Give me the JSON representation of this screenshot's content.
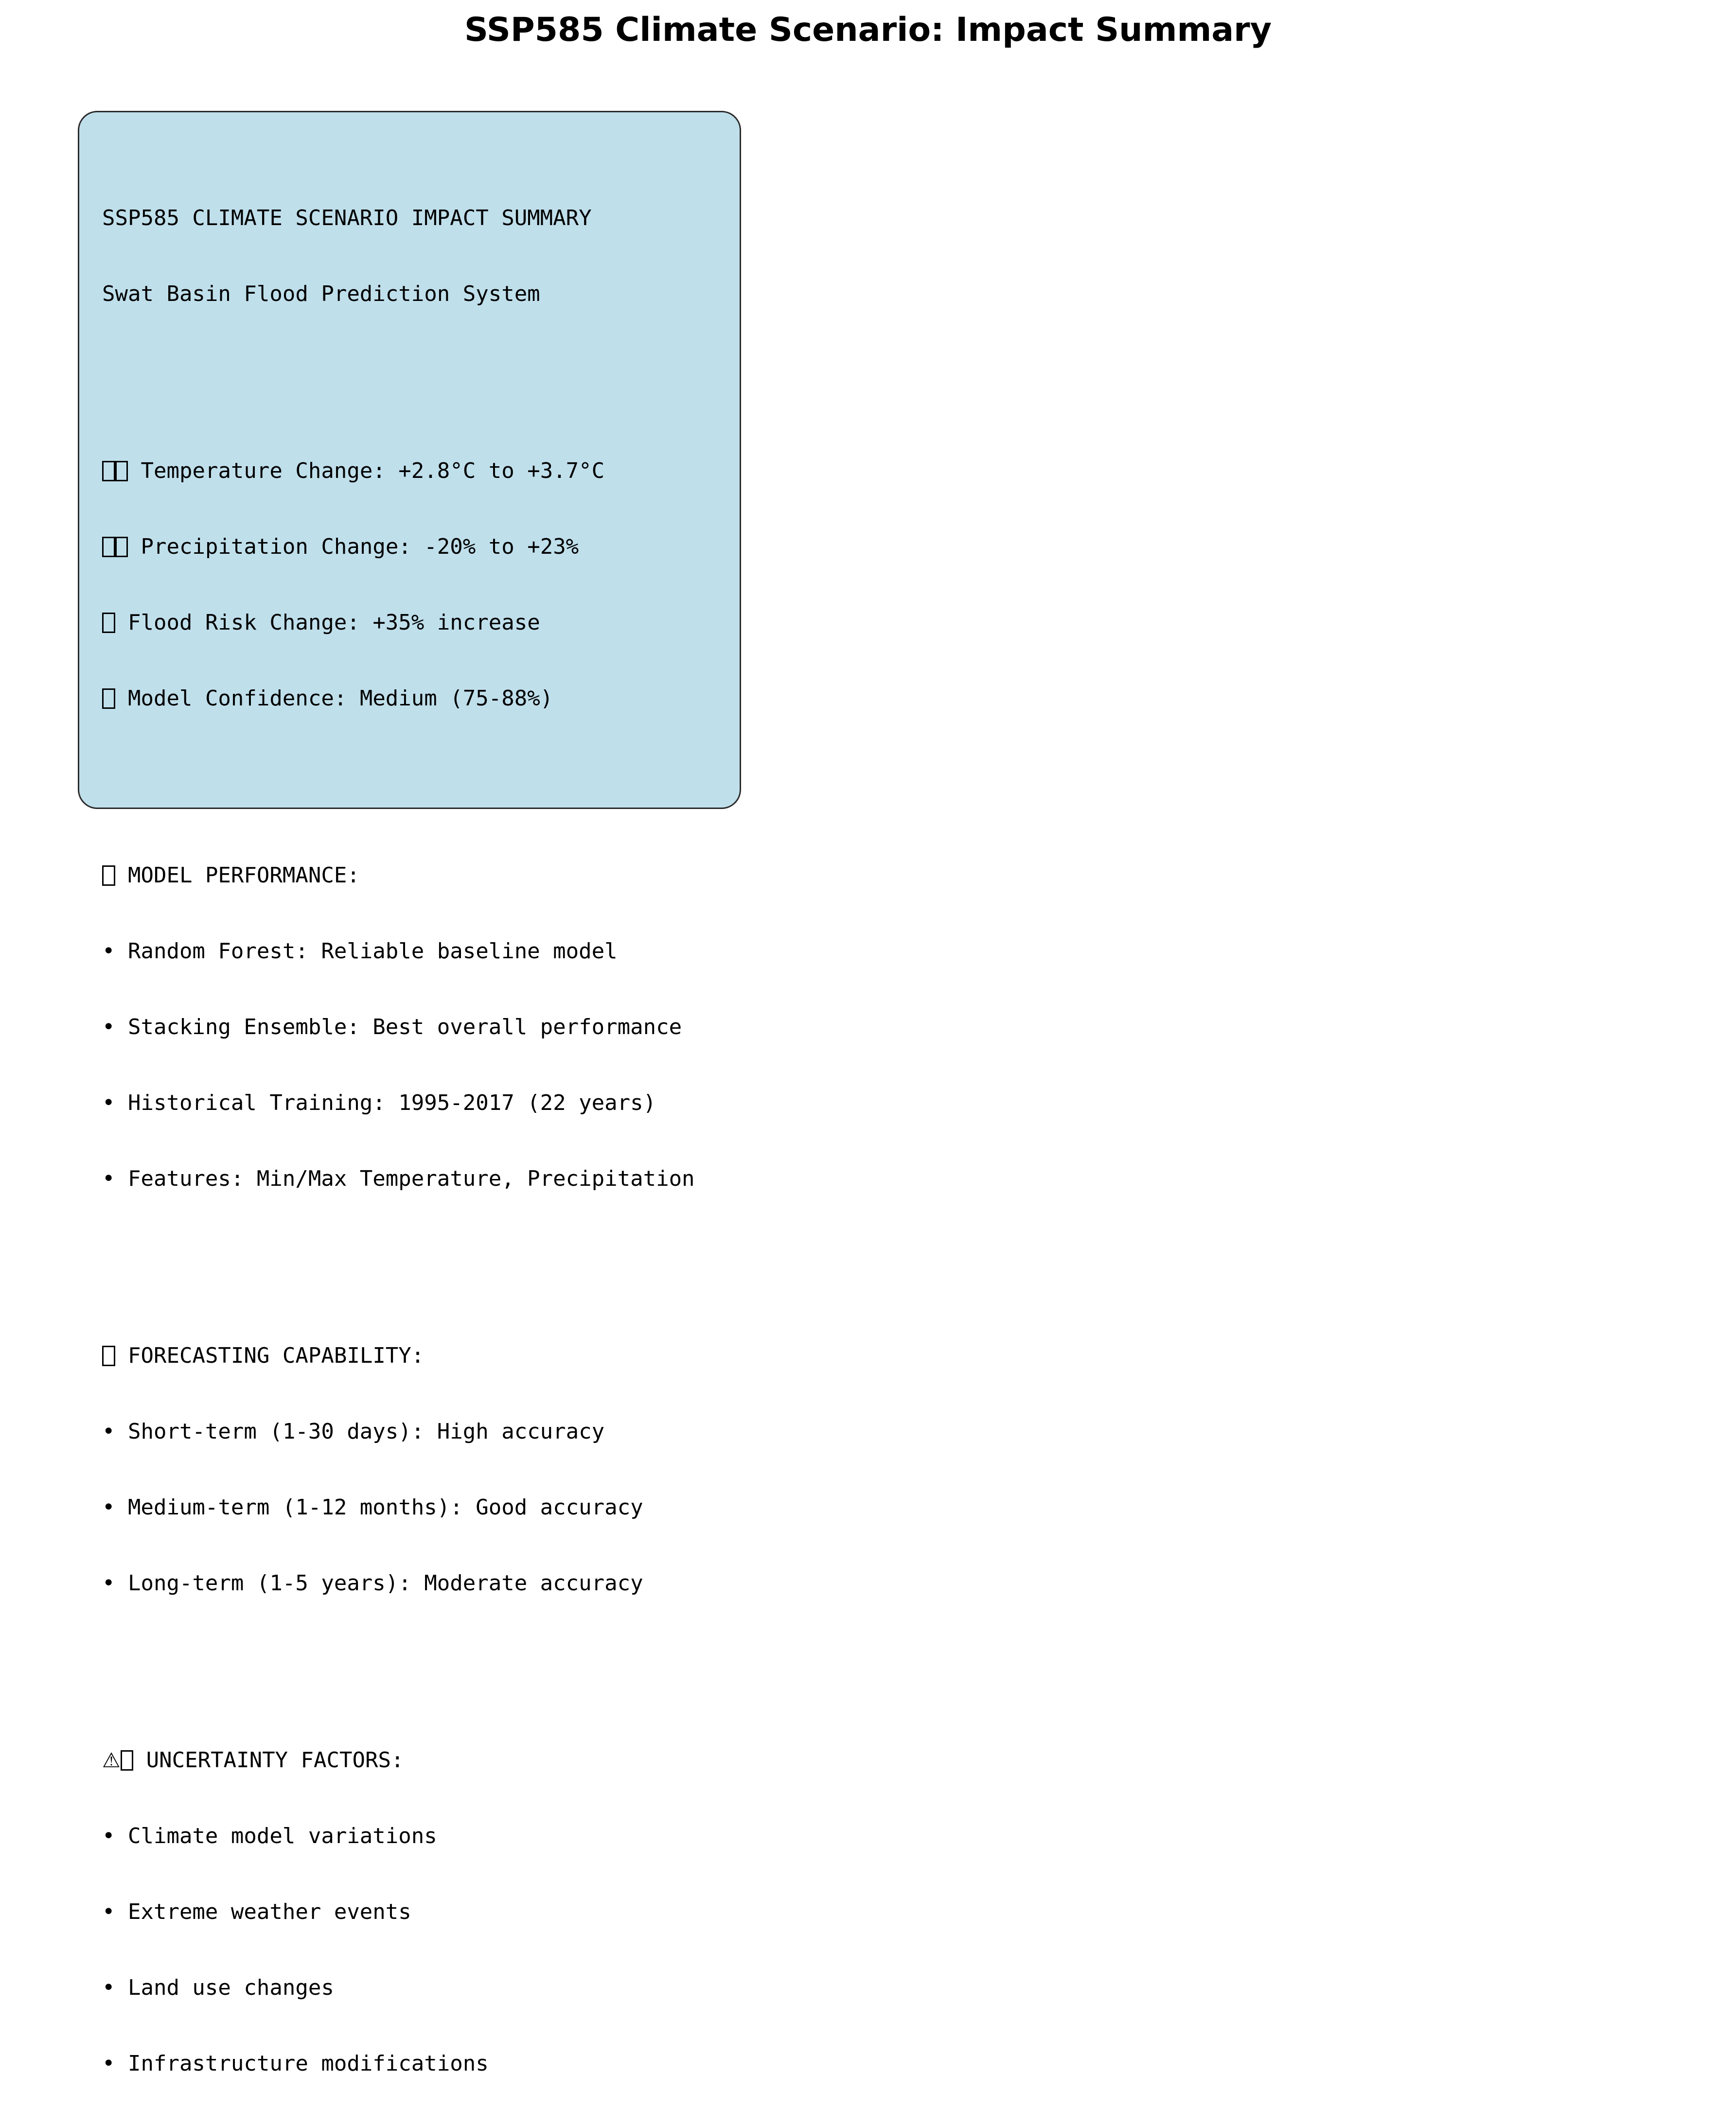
{
  "title": "SSP585 Climate Scenario: Impact Summary",
  "summary": {
    "heading": "SSP585 CLIMATE SCENARIO IMPACT SUMMARY",
    "subheading": "Swat Basin Flood Prediction System",
    "key_changes": [
      {
        "icon": "missing-glyph-icon",
        "glyphs": 2,
        "text": "Temperature Change: +2.8°C to +3.7°C"
      },
      {
        "icon": "missing-glyph-icon",
        "glyphs": 2,
        "text": "Precipitation Change: -20% to +23%"
      },
      {
        "icon": "missing-glyph-icon",
        "glyphs": 1,
        "text": "Flood Risk Change: +35% increase"
      },
      {
        "icon": "missing-glyph-icon",
        "glyphs": 1,
        "text": "Model Confidence: Medium (75-88%)"
      }
    ],
    "sections": [
      {
        "icon": "missing-glyph-icon",
        "warning": "",
        "title": "MODEL PERFORMANCE:",
        "items": [
          "• Random Forest: Reliable baseline model",
          "• Stacking Ensemble: Best overall performance",
          "• Historical Training: 1995-2017 (22 years)",
          "• Features: Min/Max Temperature, Precipitation"
        ]
      },
      {
        "icon": "missing-glyph-icon",
        "warning": "",
        "title": "FORECASTING CAPABILITY:",
        "items": [
          "• Short-term (1-30 days): High accuracy",
          "• Medium-term (1-12 months): Good accuracy",
          "• Long-term (1-5 years): Moderate accuracy"
        ]
      },
      {
        "icon": "warning-icon",
        "warning": "⚠",
        "title": "UNCERTAINTY FACTORS:",
        "items": [
          "• Climate model variations",
          "• Extreme weather events",
          "• Land use changes",
          "• Infrastructure modifications"
        ]
      }
    ]
  },
  "colors": {
    "box_fill": "#bfdfeb",
    "box_border": "#2a2a2a",
    "text": "#000000"
  }
}
